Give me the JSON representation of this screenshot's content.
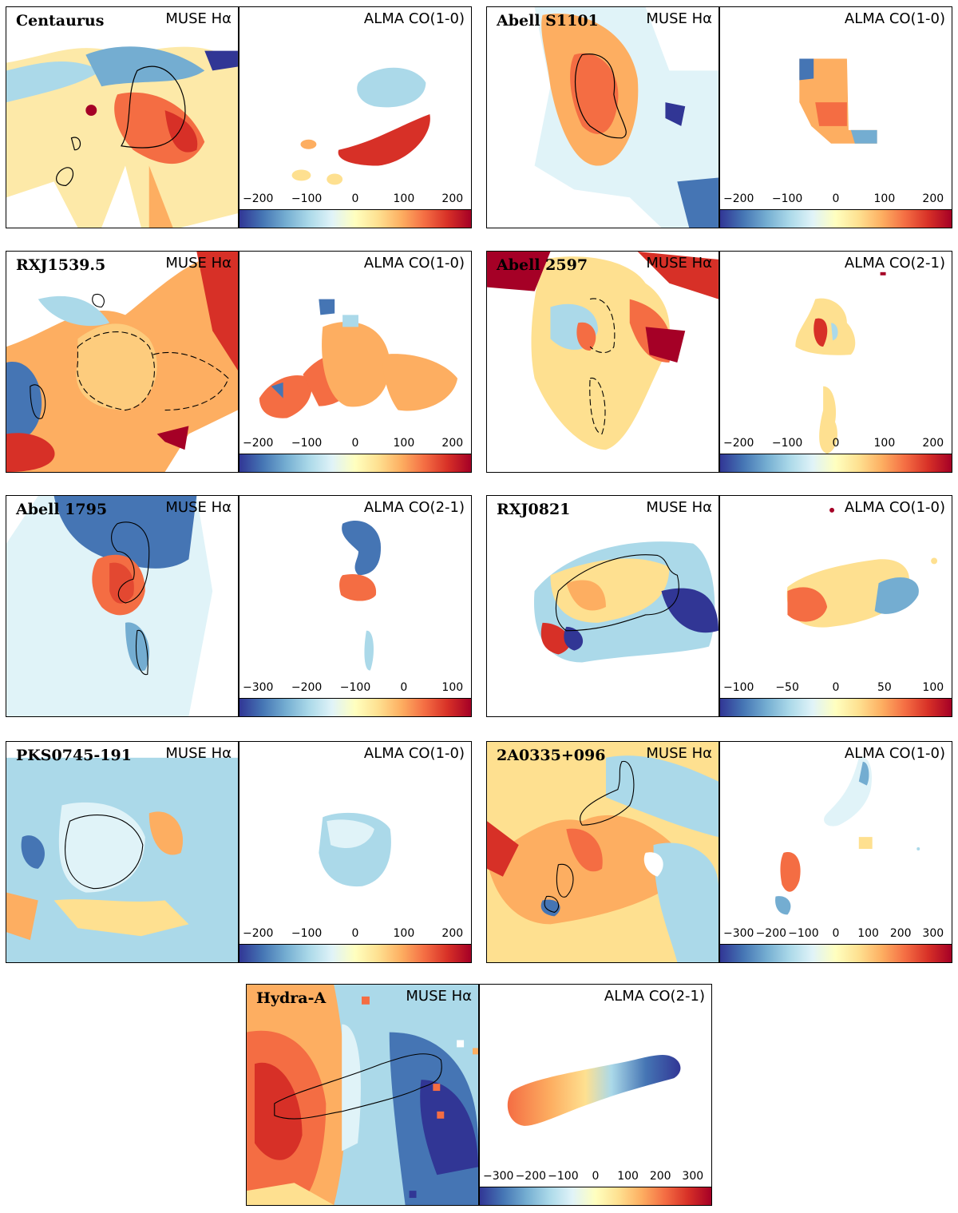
{
  "figure": {
    "rows": [
      {
        "galaxy": "Centaurus",
        "muse_label": "MUSE Hα",
        "alma_label": "ALMA CO(1-0)",
        "colorbar_ticks": [
          "−200",
          "−100",
          "0",
          "100",
          "200"
        ]
      },
      {
        "galaxy": "Abell S1101",
        "muse_label": "MUSE Hα",
        "alma_label": "ALMA CO(1-0)",
        "colorbar_ticks": [
          "−200",
          "−100",
          "0",
          "100",
          "200"
        ]
      },
      {
        "galaxy": "RXJ1539.5",
        "muse_label": "MUSE Hα",
        "alma_label": "ALMA CO(1-0)",
        "colorbar_ticks": [
          "−200",
          "−100",
          "0",
          "100",
          "200"
        ]
      },
      {
        "galaxy": "Abell 2597",
        "muse_label": "MUSE Hα",
        "alma_label": "ALMA CO(2-1)",
        "colorbar_ticks": [
          "−200",
          "−100",
          "0",
          "100",
          "200"
        ]
      },
      {
        "galaxy": "Abell 1795",
        "muse_label": "MUSE Hα",
        "alma_label": "ALMA CO(2-1)",
        "colorbar_ticks": [
          "−300",
          "−200",
          "−100",
          "0",
          "100"
        ]
      },
      {
        "galaxy": "RXJ0821",
        "muse_label": "MUSE Hα",
        "alma_label": "ALMA CO(1-0)",
        "colorbar_ticks": [
          "−100",
          "−50",
          "0",
          "50",
          "100"
        ]
      },
      {
        "galaxy": "PKS0745-191",
        "muse_label": "MUSE Hα",
        "alma_label": "ALMA CO(1-0)",
        "colorbar_ticks": [
          "−200",
          "−100",
          "0",
          "100",
          "200"
        ]
      },
      {
        "galaxy": "2A0335+096",
        "muse_label": "MUSE Hα",
        "alma_label": "ALMA CO(1-0)",
        "colorbar_ticks": [
          "−300",
          "−200",
          "−100",
          "0",
          "100",
          "200",
          "300"
        ]
      },
      {
        "galaxy": "Hydra-A",
        "muse_label": "MUSE Hα",
        "alma_label": "ALMA CO(2-1)",
        "colorbar_ticks": [
          "−300",
          "−200",
          "−100",
          "0",
          "100",
          "200",
          "300"
        ]
      }
    ],
    "colormap": [
      "#313695",
      "#4575b4",
      "#74add1",
      "#abd9e9",
      "#e0f3f8",
      "#ffffbf",
      "#fee090",
      "#fdae61",
      "#f46d43",
      "#d73027",
      "#a50026"
    ]
  }
}
